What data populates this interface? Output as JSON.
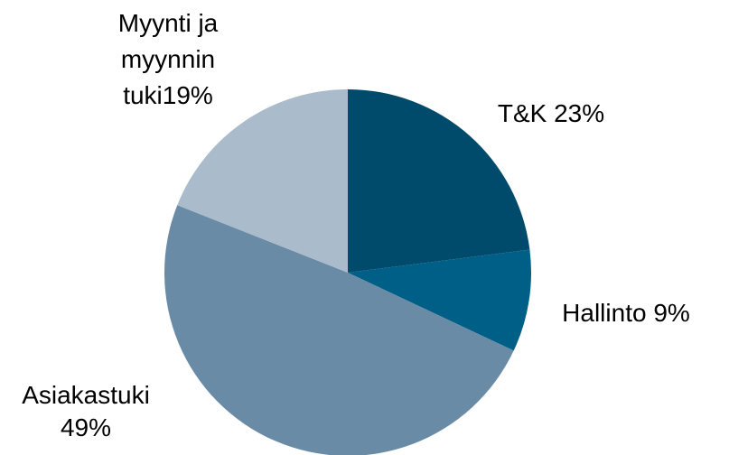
{
  "chart_data": {
    "type": "pie",
    "values": [
      23,
      9,
      49,
      19
    ],
    "value_labels": [
      "T&K 23%",
      "Hallinto 9%",
      "Asiakastuki\n49%",
      "Myynti ja\nmyynnin\ntuki19%"
    ],
    "colors": [
      "#004b6b",
      "#005f87",
      "#6a8ba6",
      "#aabccb"
    ]
  }
}
